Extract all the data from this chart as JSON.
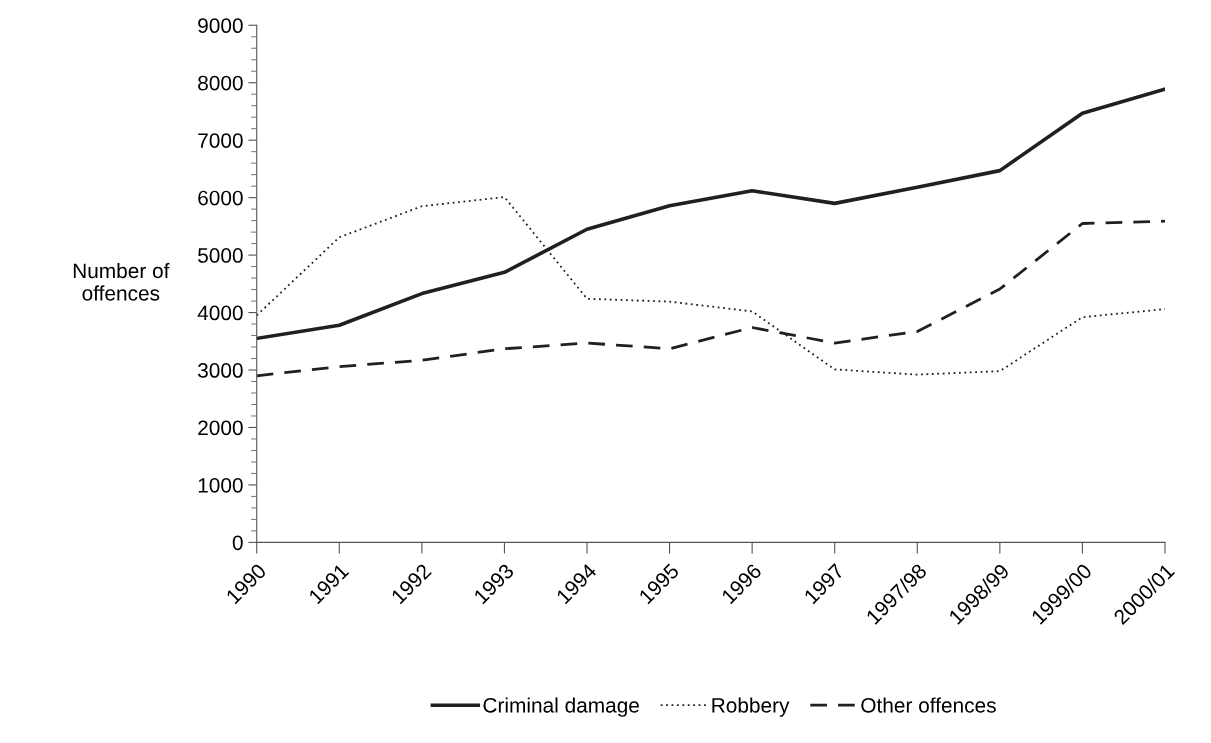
{
  "chart_data": {
    "type": "line",
    "ylabel": "Number of\noffences",
    "categories": [
      "1990",
      "1991",
      "1992",
      "1993",
      "1994",
      "1995",
      "1996",
      "1997",
      "1997/98",
      "1998/99",
      "1999/00",
      "2000/01"
    ],
    "series": [
      {
        "name": "Criminal damage",
        "color": "#231f20",
        "line_style": "solid",
        "values": [
          3550,
          3780,
          4330,
          4700,
          5450,
          5860,
          6120,
          5900,
          6180,
          6470,
          7470,
          7890
        ]
      },
      {
        "name": "Robbery",
        "color": "#231f20",
        "line_style": "dotted",
        "values": [
          3950,
          5310,
          5850,
          6010,
          4240,
          4190,
          4020,
          3010,
          2920,
          2980,
          3920,
          4060
        ]
      },
      {
        "name": "Other offences",
        "color": "#231f20",
        "line_style": "dashed",
        "values": [
          2900,
          3060,
          3170,
          3370,
          3470,
          3370,
          3740,
          3470,
          3670,
          4410,
          5550,
          5590
        ]
      }
    ],
    "ylim": [
      0,
      9000
    ],
    "yticks": [
      0,
      1000,
      2000,
      3000,
      4000,
      5000,
      6000,
      7000,
      8000,
      9000
    ],
    "grid": false,
    "legend": "bottom",
    "marker": "none"
  }
}
